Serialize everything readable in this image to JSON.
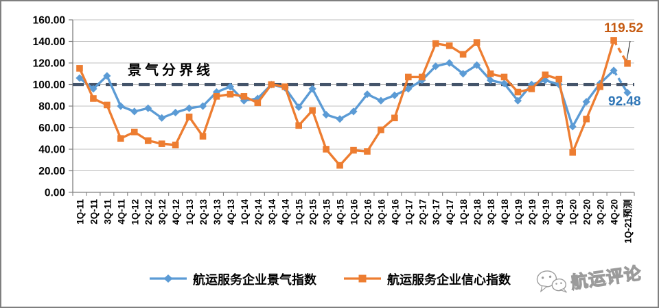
{
  "chart_data": {
    "type": "line",
    "title": "",
    "categories": [
      "1Q-11",
      "2Q-11",
      "3Q-11",
      "4Q-11",
      "1Q-12",
      "2Q-12",
      "3Q-12",
      "4Q-12",
      "1Q-13",
      "2Q-13",
      "3Q-13",
      "4Q-13",
      "1Q-14",
      "2Q-14",
      "3Q-14",
      "4Q-14",
      "1Q-15",
      "2Q-15",
      "3Q-15",
      "4Q-15",
      "1Q-16",
      "2Q-16",
      "3Q-16",
      "4Q-16",
      "1Q-17",
      "2Q-17",
      "3Q-17",
      "4Q-17",
      "1Q-18",
      "2Q-18",
      "3Q-18",
      "4Q-18",
      "1Q-19",
      "2Q-19",
      "3Q-19",
      "4Q-19",
      "1Q-20",
      "2Q-20",
      "3Q-20",
      "4Q-20",
      "1Q-21预测"
    ],
    "series": [
      {
        "name": "航运服务企业景气指数",
        "color": "#5B9BD5",
        "marker": "diamond",
        "values": [
          106,
          96,
          108,
          80,
          75,
          78,
          69,
          74,
          78,
          80,
          93,
          98,
          85,
          87,
          100,
          97,
          79,
          96,
          72,
          68,
          75,
          91,
          85,
          90,
          96,
          104,
          117,
          120,
          110,
          118,
          104,
          101,
          85,
          100,
          104,
          100,
          61,
          84,
          101,
          113,
          92.48
        ],
        "last_segment_forecast": true
      },
      {
        "name": "航运服务企业信心指数",
        "color": "#ED7D31",
        "marker": "square",
        "values": [
          115,
          87,
          81,
          50,
          56,
          48,
          45,
          44,
          70,
          52,
          89,
          91,
          89,
          83,
          100,
          98,
          62,
          76,
          40,
          25,
          39,
          38,
          58,
          69,
          107,
          107,
          138,
          136,
          128,
          139,
          110,
          107,
          93,
          96,
          109,
          105,
          37,
          68,
          98,
          141,
          119.52
        ],
        "last_segment_forecast": true
      }
    ],
    "reference_line": {
      "value": 100,
      "label": "景气分界线",
      "color": "#44546A",
      "style": "dashed"
    },
    "y_axis": {
      "min": 0,
      "max": 160,
      "step": 20,
      "tick_labels": [
        "0.00",
        "20.00",
        "40.00",
        "60.00",
        "80.00",
        "100.00",
        "120.00",
        "140.00",
        "160.00"
      ]
    },
    "annotations": [
      {
        "text": "119.52",
        "series": "航运服务企业信心指数",
        "color": "#C55A11"
      },
      {
        "text": "92.48",
        "series": "航运服务企业景气指数",
        "color": "#2E75B6"
      }
    ],
    "legend_position": "bottom",
    "grid": true,
    "gridline_color": "#BFBFBF",
    "axis_color": "#7F7F7F"
  },
  "watermark": {
    "text": "航运评论",
    "icon": "wechat-icon"
  }
}
